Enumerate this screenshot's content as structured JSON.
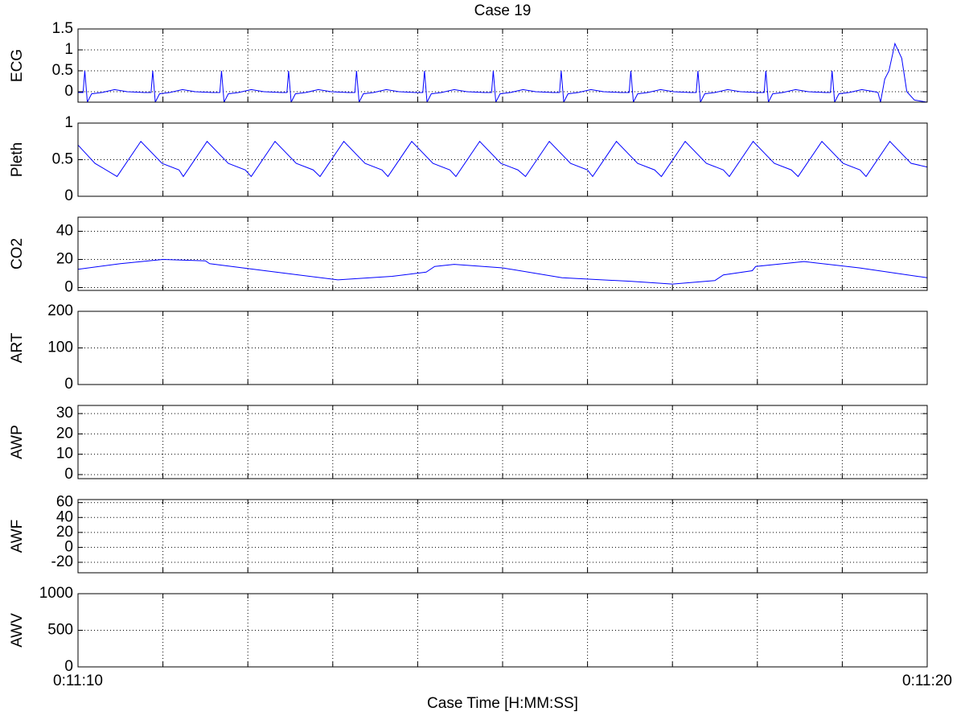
{
  "chart_data": [
    {
      "type": "line",
      "title": "Case 19",
      "ylabel": "ECG",
      "color": "#0000ff",
      "xlim": [
        0,
        10
      ],
      "ylim": [
        -0.25,
        1.5
      ],
      "yticks": [
        0,
        0.5,
        1,
        1.5
      ],
      "grid": true,
      "xticks": [
        {
          "value": 0,
          "label": null
        },
        {
          "value": 1,
          "label": null
        },
        {
          "value": 2,
          "label": null
        },
        {
          "value": 3,
          "label": null
        },
        {
          "value": 4,
          "label": null
        },
        {
          "value": 5,
          "label": null
        },
        {
          "value": 6,
          "label": null
        },
        {
          "value": 7,
          "label": null
        },
        {
          "value": 8,
          "label": null
        },
        {
          "value": 9,
          "label": null
        },
        {
          "value": 10,
          "label": null
        }
      ],
      "x": [
        0,
        0.06,
        0.08,
        0.11,
        0.16,
        0.28,
        0.43,
        0.58,
        0.78,
        0.86,
        0.88,
        0.91,
        0.96,
        1.08,
        1.23,
        1.38,
        1.58,
        1.67,
        1.69,
        1.72,
        1.77,
        1.89,
        2.04,
        2.19,
        2.39,
        2.46,
        2.48,
        2.51,
        2.56,
        2.68,
        2.83,
        2.98,
        3.18,
        3.26,
        3.28,
        3.31,
        3.36,
        3.48,
        3.63,
        3.78,
        3.98,
        4.06,
        4.08,
        4.11,
        4.16,
        4.28,
        4.43,
        4.58,
        4.78,
        4.87,
        4.89,
        4.92,
        4.97,
        5.09,
        5.24,
        5.39,
        5.59,
        5.67,
        5.69,
        5.72,
        5.77,
        5.89,
        6.04,
        6.19,
        6.39,
        6.49,
        6.51,
        6.54,
        6.59,
        6.71,
        6.86,
        7.01,
        7.21,
        7.28,
        7.3,
        7.33,
        7.38,
        7.5,
        7.65,
        7.8,
        8.0,
        8.08,
        8.1,
        8.13,
        8.18,
        8.3,
        8.45,
        8.6,
        8.8,
        8.86,
        8.88,
        8.91,
        8.96,
        9.08,
        9.23,
        9.38,
        9.42,
        9.45,
        9.5,
        9.55,
        9.62,
        9.7,
        9.76,
        9.85,
        10
      ],
      "values": [
        -0.02,
        -0.02,
        0.5,
        -0.25,
        -0.05,
        -0.02,
        0.05,
        0.0,
        -0.02,
        -0.02,
        0.5,
        -0.25,
        -0.05,
        -0.02,
        0.05,
        0.0,
        -0.02,
        -0.02,
        0.5,
        -0.25,
        -0.05,
        -0.02,
        0.05,
        0.0,
        -0.02,
        -0.02,
        0.5,
        -0.25,
        -0.05,
        -0.02,
        0.05,
        0.0,
        -0.02,
        -0.02,
        0.5,
        -0.25,
        -0.05,
        -0.02,
        0.05,
        0.0,
        -0.02,
        -0.02,
        0.5,
        -0.25,
        -0.05,
        -0.02,
        0.05,
        0.0,
        -0.02,
        -0.02,
        0.5,
        -0.25,
        -0.05,
        -0.02,
        0.05,
        0.0,
        -0.02,
        -0.02,
        0.5,
        -0.25,
        -0.05,
        -0.02,
        0.05,
        0.0,
        -0.02,
        -0.02,
        0.5,
        -0.25,
        -0.05,
        -0.02,
        0.05,
        0.0,
        -0.02,
        -0.02,
        0.5,
        -0.25,
        -0.05,
        -0.02,
        0.05,
        0.0,
        -0.02,
        -0.02,
        0.5,
        -0.25,
        -0.05,
        -0.02,
        0.05,
        0.0,
        -0.02,
        -0.02,
        0.5,
        -0.25,
        -0.05,
        -0.02,
        0.05,
        0.0,
        -0.02,
        -0.25,
        0.3,
        0.5,
        1.15,
        0.8,
        0.0,
        -0.2,
        -0.25
      ]
    },
    {
      "type": "line",
      "ylabel": "Pleth",
      "color": "#0000ff",
      "xlim": [
        0,
        10
      ],
      "ylim": [
        0,
        1
      ],
      "yticks": [
        0,
        0.5,
        1
      ],
      "grid": true,
      "xticks": [
        {
          "value": 0,
          "label": null
        },
        {
          "value": 1,
          "label": null
        },
        {
          "value": 2,
          "label": null
        },
        {
          "value": 3,
          "label": null
        },
        {
          "value": 4,
          "label": null
        },
        {
          "value": 5,
          "label": null
        },
        {
          "value": 6,
          "label": null
        },
        {
          "value": 7,
          "label": null
        },
        {
          "value": 8,
          "label": null
        },
        {
          "value": 9,
          "label": null
        },
        {
          "value": 10,
          "label": null
        }
      ],
      "x": [
        0,
        0.2,
        0.46,
        0.74,
        0.99,
        1.19,
        1.24,
        1.52,
        1.77,
        1.97,
        2.04,
        2.32,
        2.57,
        2.77,
        2.85,
        3.13,
        3.38,
        3.58,
        3.65,
        3.93,
        4.18,
        4.38,
        4.45,
        4.73,
        4.98,
        5.18,
        5.27,
        5.55,
        5.8,
        6.0,
        6.06,
        6.34,
        6.59,
        6.79,
        6.87,
        7.15,
        7.4,
        7.6,
        7.67,
        7.95,
        8.2,
        8.4,
        8.48,
        8.76,
        9.01,
        9.21,
        9.28,
        9.56,
        9.81,
        10
      ],
      "values": [
        0.7,
        0.45,
        0.27,
        0.75,
        0.45,
        0.36,
        0.27,
        0.75,
        0.45,
        0.36,
        0.27,
        0.75,
        0.45,
        0.36,
        0.27,
        0.75,
        0.45,
        0.36,
        0.27,
        0.75,
        0.45,
        0.36,
        0.27,
        0.75,
        0.45,
        0.36,
        0.27,
        0.75,
        0.45,
        0.36,
        0.27,
        0.75,
        0.45,
        0.36,
        0.27,
        0.75,
        0.45,
        0.36,
        0.27,
        0.75,
        0.45,
        0.36,
        0.27,
        0.75,
        0.45,
        0.36,
        0.27,
        0.75,
        0.45,
        0.4
      ]
    },
    {
      "type": "line",
      "ylabel": "CO2",
      "color": "#0000ff",
      "xlim": [
        0,
        10
      ],
      "ylim": [
        -2,
        50
      ],
      "yticks": [
        0,
        20,
        40
      ],
      "grid": true,
      "xticks": [
        {
          "value": 0,
          "label": null
        },
        {
          "value": 1,
          "label": null
        },
        {
          "value": 2,
          "label": null
        },
        {
          "value": 3,
          "label": null
        },
        {
          "value": 4,
          "label": null
        },
        {
          "value": 5,
          "label": null
        },
        {
          "value": 6,
          "label": null
        },
        {
          "value": 7,
          "label": null
        },
        {
          "value": 8,
          "label": null
        },
        {
          "value": 9,
          "label": null
        },
        {
          "value": 10,
          "label": null
        }
      ],
      "x": [
        0,
        0.5,
        1.0,
        1.5,
        1.55,
        2.2,
        3.06,
        3.7,
        4.1,
        4.2,
        4.43,
        5.0,
        5.7,
        6.5,
        7.0,
        7.5,
        7.6,
        7.94,
        7.98,
        8.55,
        9.2,
        10
      ],
      "values": [
        13,
        17,
        20,
        19,
        17,
        12,
        5.5,
        8,
        11,
        15,
        16.5,
        14,
        7,
        4.5,
        2.5,
        5,
        9,
        12,
        15,
        18.5,
        14,
        7
      ]
    },
    {
      "type": "line",
      "ylabel": "ART",
      "color": "#0000ff",
      "xlim": [
        0,
        10
      ],
      "ylim": [
        0,
        200
      ],
      "yticks": [
        0,
        100,
        200
      ],
      "grid": true,
      "xticks": [
        {
          "value": 0,
          "label": null
        },
        {
          "value": 1,
          "label": null
        },
        {
          "value": 2,
          "label": null
        },
        {
          "value": 3,
          "label": null
        },
        {
          "value": 4,
          "label": null
        },
        {
          "value": 5,
          "label": null
        },
        {
          "value": 6,
          "label": null
        },
        {
          "value": 7,
          "label": null
        },
        {
          "value": 8,
          "label": null
        },
        {
          "value": 9,
          "label": null
        },
        {
          "value": 10,
          "label": null
        }
      ],
      "x": [],
      "values": []
    },
    {
      "type": "line",
      "ylabel": "AWP",
      "color": "#0000ff",
      "xlim": [
        0,
        10
      ],
      "ylim": [
        -2,
        34
      ],
      "yticks": [
        0,
        10,
        20,
        30
      ],
      "grid": true,
      "xticks": [
        {
          "value": 0,
          "label": null
        },
        {
          "value": 1,
          "label": null
        },
        {
          "value": 2,
          "label": null
        },
        {
          "value": 3,
          "label": null
        },
        {
          "value": 4,
          "label": null
        },
        {
          "value": 5,
          "label": null
        },
        {
          "value": 6,
          "label": null
        },
        {
          "value": 7,
          "label": null
        },
        {
          "value": 8,
          "label": null
        },
        {
          "value": 9,
          "label": null
        },
        {
          "value": 10,
          "label": null
        }
      ],
      "x": [],
      "values": []
    },
    {
      "type": "line",
      "ylabel": "AWF",
      "color": "#0000ff",
      "xlim": [
        0,
        10
      ],
      "ylim": [
        -34,
        64
      ],
      "yticks": [
        -20,
        0,
        20,
        40,
        60
      ],
      "grid": true,
      "xticks": [
        {
          "value": 0,
          "label": null
        },
        {
          "value": 1,
          "label": null
        },
        {
          "value": 2,
          "label": null
        },
        {
          "value": 3,
          "label": null
        },
        {
          "value": 4,
          "label": null
        },
        {
          "value": 5,
          "label": null
        },
        {
          "value": 6,
          "label": null
        },
        {
          "value": 7,
          "label": null
        },
        {
          "value": 8,
          "label": null
        },
        {
          "value": 9,
          "label": null
        },
        {
          "value": 10,
          "label": null
        }
      ],
      "x": [],
      "values": []
    },
    {
      "type": "line",
      "ylabel": "AWV",
      "xlabel": "Case Time [H:MM:SS]",
      "color": "#0000ff",
      "xlim": [
        0,
        10
      ],
      "ylim": [
        0,
        1000
      ],
      "yticks": [
        0,
        500,
        1000
      ],
      "grid": true,
      "xticks": [
        {
          "value": 0,
          "label": "0:11:10"
        },
        {
          "value": 1,
          "label": null
        },
        {
          "value": 2,
          "label": null
        },
        {
          "value": 3,
          "label": null
        },
        {
          "value": 4,
          "label": null
        },
        {
          "value": 5,
          "label": null
        },
        {
          "value": 6,
          "label": null
        },
        {
          "value": 7,
          "label": null
        },
        {
          "value": 8,
          "label": null
        },
        {
          "value": 9,
          "label": null
        },
        {
          "value": 10,
          "label": "0:11:20"
        }
      ],
      "x": [],
      "values": []
    }
  ]
}
